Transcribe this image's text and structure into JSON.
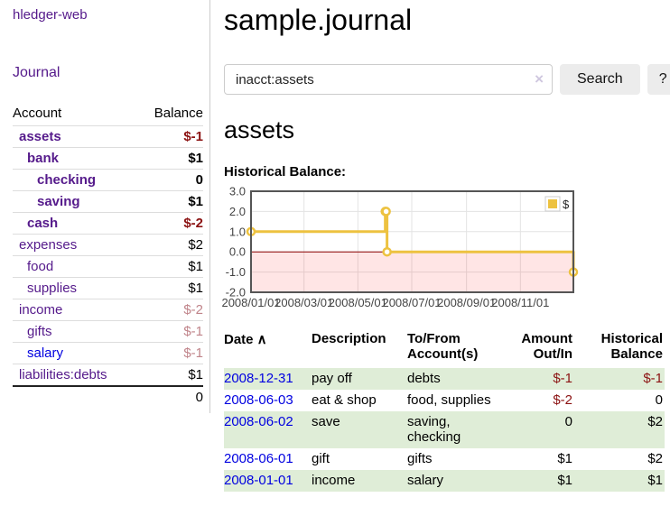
{
  "sidebar": {
    "brand": "hledger-web",
    "journal_link": "Journal",
    "accounts": {
      "col_account": "Account",
      "col_balance": "Balance",
      "rows": [
        {
          "name": "assets",
          "balance": "$-1",
          "indent": 0,
          "bold": true,
          "name_color": "purple",
          "balance_color": "neg"
        },
        {
          "name": "bank",
          "balance": "$1",
          "indent": 1,
          "bold": true,
          "name_color": "purple",
          "balance_color": "pos"
        },
        {
          "name": "checking",
          "balance": "0",
          "indent": 2,
          "bold": true,
          "name_color": "purple",
          "balance_color": "pos"
        },
        {
          "name": "saving",
          "balance": "$1",
          "indent": 2,
          "bold": true,
          "name_color": "purple",
          "balance_color": "pos"
        },
        {
          "name": "cash",
          "balance": "$-2",
          "indent": 1,
          "bold": true,
          "name_color": "purple",
          "balance_color": "neg"
        },
        {
          "name": "expenses",
          "balance": "$2",
          "indent": 0,
          "bold": false,
          "name_color": "purple",
          "balance_color": "pos"
        },
        {
          "name": "food",
          "balance": "$1",
          "indent": 1,
          "bold": false,
          "name_color": "purple",
          "balance_color": "pos"
        },
        {
          "name": "supplies",
          "balance": "$1",
          "indent": 1,
          "bold": false,
          "name_color": "purple",
          "balance_color": "pos"
        },
        {
          "name": "income",
          "balance": "$-2",
          "indent": 0,
          "bold": false,
          "name_color": "purple",
          "balance_color": "neg-muted"
        },
        {
          "name": "gifts",
          "balance": "$-1",
          "indent": 1,
          "bold": false,
          "name_color": "purple",
          "balance_color": "neg-muted"
        },
        {
          "name": "salary",
          "balance": "$-1",
          "indent": 1,
          "bold": false,
          "name_color": "blue",
          "balance_color": "neg-muted"
        },
        {
          "name": "liabilities:debts",
          "balance": "$1",
          "indent": 0,
          "bold": false,
          "name_color": "purple",
          "balance_color": "pos"
        }
      ],
      "total": "0"
    }
  },
  "main": {
    "title": "sample.journal",
    "search": {
      "value": "inacct:assets",
      "clear_icon": "×",
      "button_label": "Search",
      "help_label": "?"
    },
    "account_heading": "assets",
    "chart_label": "Historical Balance:"
  },
  "chart_data": {
    "type": "line",
    "title": "Historical Balance:",
    "step": true,
    "legend": {
      "label": "$",
      "position": "top-right",
      "swatch_color": "#edc240"
    },
    "series": [
      {
        "name": "$",
        "color": "#edc240",
        "points": [
          [
            "2008-01-01",
            1
          ],
          [
            "2008-06-01",
            2
          ],
          [
            "2008-06-02",
            2
          ],
          [
            "2008-06-03",
            0
          ],
          [
            "2008-12-31",
            -1
          ]
        ]
      }
    ],
    "xlim": [
      "2008-01-01",
      "2008-12-31"
    ],
    "ylim": [
      -2,
      3
    ],
    "x_ticks": [
      "2008/01/01",
      "2008/03/01",
      "2008/05/01",
      "2008/07/01",
      "2008/09/01",
      "2008/11/01"
    ],
    "y_ticks": [
      "3.0",
      "2.0",
      "1.0",
      "0.0",
      "-1.0",
      "-2.0"
    ],
    "grid": true,
    "negative_region_color": "rgba(255,0,0,0.10)",
    "zero_line_color": "#8b0000",
    "grid_color": "#e3e3e3",
    "border_color": "#555555"
  },
  "register": {
    "columns": [
      {
        "label": "Date",
        "align": "left",
        "sort_icon": "∧"
      },
      {
        "label": "Description",
        "align": "left"
      },
      {
        "label": "To/From Account(s)",
        "align": "left"
      },
      {
        "label": "Amount Out/In",
        "align": "right"
      },
      {
        "label": "Historical Balance",
        "align": "right"
      }
    ],
    "rows": [
      {
        "date": "2008-12-31",
        "description": "pay off",
        "accounts": "debts",
        "amount": "$-1",
        "balance": "$-1",
        "amount_neg": true,
        "balance_neg": true
      },
      {
        "date": "2008-06-03",
        "description": "eat & shop",
        "accounts": "food, supplies",
        "amount": "$-2",
        "balance": "0",
        "amount_neg": true,
        "balance_neg": false
      },
      {
        "date": "2008-06-02",
        "description": "save",
        "accounts": "saving,\nchecking",
        "amount": "0",
        "balance": "$2",
        "amount_neg": false,
        "balance_neg": false
      },
      {
        "date": "2008-06-01",
        "description": "gift",
        "accounts": "gifts",
        "amount": "$1",
        "balance": "$2",
        "amount_neg": false,
        "balance_neg": false
      },
      {
        "date": "2008-01-01",
        "description": "income",
        "accounts": "salary",
        "amount": "$1",
        "balance": "$1",
        "amount_neg": false,
        "balance_neg": false
      }
    ]
  },
  "colors": {
    "link_purple": "#551a8b",
    "link_blue": "#0000e0",
    "negative_red": "#8b1212",
    "negative_muted_red": "#c0848a",
    "row_stripe_green": "#dfedd7",
    "chart_yellow": "#edc240",
    "negative_region_pink": "rgba(255,0,0,0.10)"
  }
}
